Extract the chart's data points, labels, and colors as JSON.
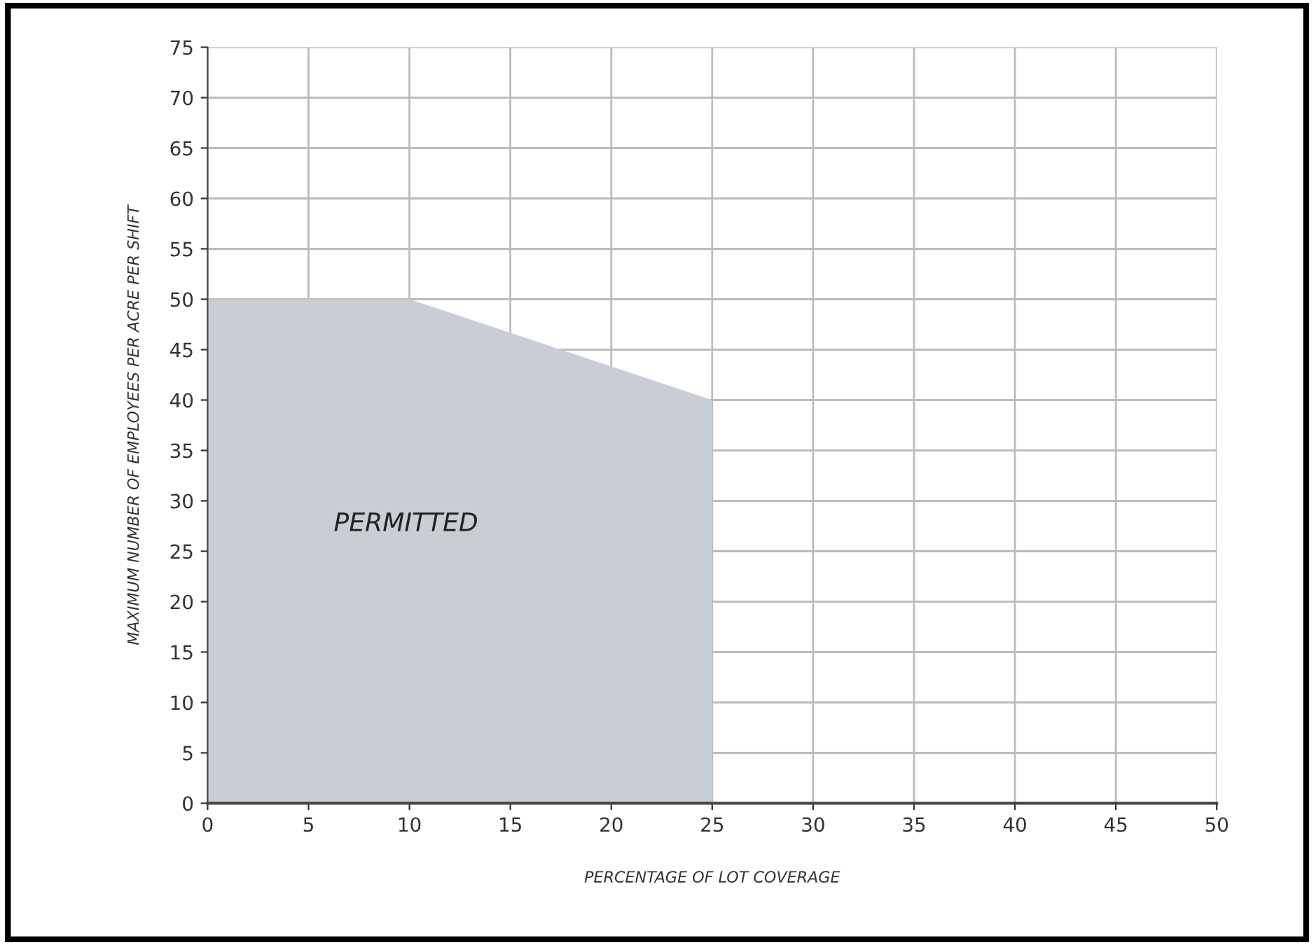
{
  "chart_data": {
    "type": "area",
    "xlabel": "PERCENTAGE OF LOT COVERAGE",
    "ylabel": "MAXIMUM NUMBER OF EMPLOYEES PER ACRE PER SHIFT",
    "x": [
      0,
      10,
      25
    ],
    "values": [
      50,
      50,
      40
    ],
    "color": "#c9cdd4",
    "xlim": [
      0,
      50
    ],
    "ylim": [
      0,
      75
    ],
    "xticks": [
      0,
      5,
      10,
      15,
      20,
      25,
      30,
      35,
      40,
      45,
      50
    ],
    "yticks": [
      0,
      5,
      10,
      15,
      20,
      25,
      30,
      35,
      40,
      45,
      50,
      55,
      60,
      65,
      70,
      75
    ],
    "grid": true,
    "annotations": [
      "PERMITTED"
    ]
  }
}
